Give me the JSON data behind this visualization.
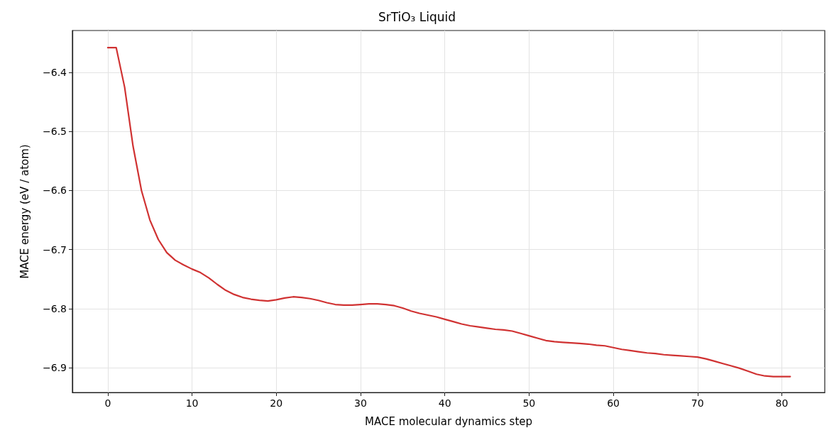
{
  "chart_data": {
    "type": "line",
    "title": "SrTiO₃ Liquid",
    "xlabel": "MACE molecular dynamics step",
    "ylabel": "MACE energy (eV / atom)",
    "x": [
      0,
      1,
      2,
      3,
      4,
      5,
      6,
      7,
      8,
      9,
      10,
      11,
      12,
      13,
      14,
      15,
      16,
      17,
      18,
      19,
      20,
      21,
      22,
      23,
      24,
      25,
      26,
      27,
      28,
      29,
      30,
      31,
      32,
      33,
      34,
      35,
      36,
      37,
      38,
      39,
      40,
      41,
      42,
      43,
      44,
      45,
      46,
      47,
      48,
      49,
      50,
      51,
      52,
      53,
      54,
      55,
      56,
      57,
      58,
      59,
      60,
      61,
      62,
      63,
      64,
      65,
      66,
      67,
      68,
      69,
      70,
      71,
      72,
      73,
      74,
      75,
      76,
      77,
      78,
      79,
      80,
      81
    ],
    "series": [
      {
        "color": "#d03232",
        "values": [
          -6.358,
          -6.358,
          -6.425,
          -6.525,
          -6.6,
          -6.65,
          -6.683,
          -6.705,
          -6.718,
          -6.726,
          -6.733,
          -6.739,
          -6.748,
          -6.759,
          -6.769,
          -6.776,
          -6.781,
          -6.784,
          -6.786,
          -6.787,
          -6.785,
          -6.782,
          -6.78,
          -6.781,
          -6.783,
          -6.786,
          -6.79,
          -6.793,
          -6.794,
          -6.794,
          -6.793,
          -6.792,
          -6.792,
          -6.793,
          -6.795,
          -6.799,
          -6.804,
          -6.808,
          -6.811,
          -6.814,
          -6.818,
          -6.822,
          -6.826,
          -6.829,
          -6.831,
          -6.833,
          -6.835,
          -6.836,
          -6.838,
          -6.842,
          -6.846,
          -6.85,
          -6.854,
          -6.856,
          -6.857,
          -6.858,
          -6.859,
          -6.86,
          -6.862,
          -6.863,
          -6.866,
          -6.869,
          -6.871,
          -6.873,
          -6.875,
          -6.876,
          -6.878,
          -6.879,
          -6.88,
          -6.881,
          -6.882,
          -6.885,
          -6.889,
          -6.893,
          -6.897,
          -6.901,
          -6.906,
          -6.911,
          -6.914,
          -6.915,
          -6.915,
          -6.915
        ]
      }
    ],
    "xlim": [
      -4.2,
      85.1
    ],
    "xticks": [
      0,
      10,
      20,
      30,
      40,
      50,
      60,
      70,
      80
    ],
    "ylim": [
      -6.942,
      -6.329
    ],
    "yticks": [
      -6.9,
      -6.8,
      -6.7,
      -6.6,
      -6.5,
      -6.4
    ],
    "grid": true,
    "marker": "none",
    "line_style": "solid"
  }
}
